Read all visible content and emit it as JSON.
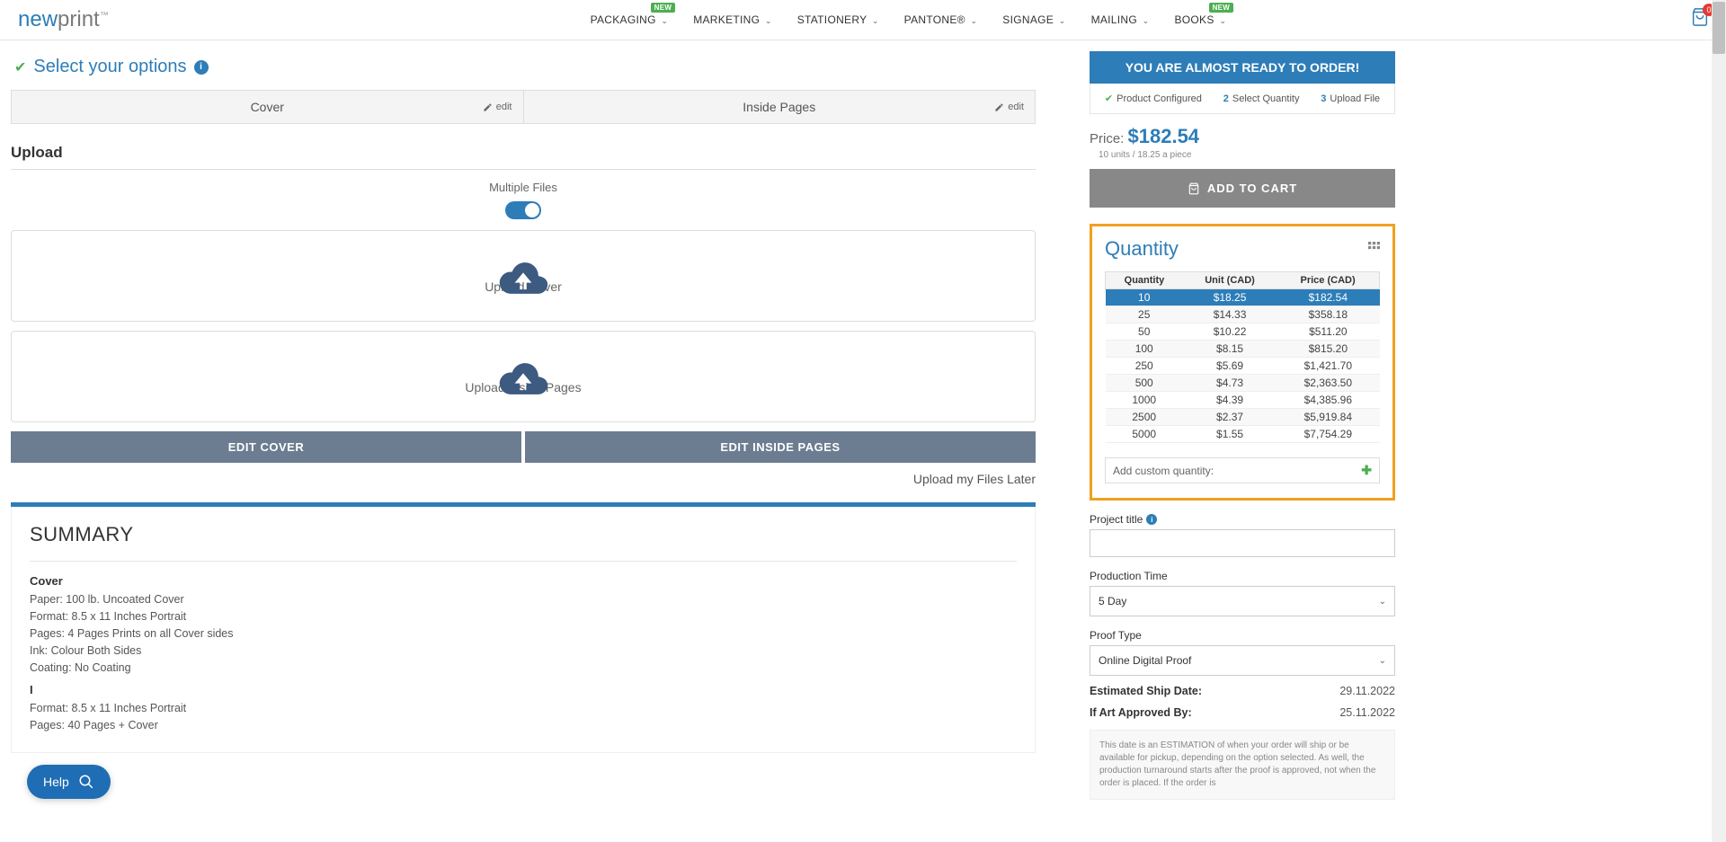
{
  "header": {
    "logo_left": "new",
    "logo_right": "print",
    "nav": [
      {
        "label": "PACKAGING",
        "badge": "NEW"
      },
      {
        "label": "MARKETING",
        "badge": null
      },
      {
        "label": "STATIONERY",
        "badge": null
      },
      {
        "label": "PANTONE®",
        "badge": null
      },
      {
        "label": "SIGNAGE",
        "badge": null
      },
      {
        "label": "MAILING",
        "badge": null
      },
      {
        "label": "BOOKS",
        "badge": "NEW"
      }
    ],
    "cart_count": "0"
  },
  "section_title": "Select your options",
  "tabs": {
    "cover": "Cover",
    "inside": "Inside Pages",
    "edit": "edit"
  },
  "upload": {
    "heading": "Upload",
    "multiple_files": "Multiple Files",
    "upload_cover": "Upload Cover",
    "upload_inside": "Upload Inside Pages",
    "edit_cover_btn": "EDIT COVER",
    "edit_inside_btn": "EDIT INSIDE PAGES",
    "later": "Upload my Files Later"
  },
  "summary": {
    "title": "SUMMARY",
    "cover_sub": "Cover",
    "cover_lines": [
      "Paper: 100 lb. Uncoated Cover",
      "Format: 8.5 x 11 Inches Portrait",
      "Pages: 4 Pages Prints on all Cover sides",
      "Ink: Colour Both Sides",
      "Coating: No Coating"
    ],
    "inside_sub": "I",
    "inside_lines": [
      "Format: 8.5 x 11 Inches Portrait",
      "Pages: 40 Pages + Cover"
    ]
  },
  "order": {
    "banner": "YOU ARE ALMOST READY TO ORDER!",
    "steps": {
      "s1": "Product Configured",
      "s2_num": "2",
      "s2": "Select Quantity",
      "s3_num": "3",
      "s3": "Upload File"
    },
    "price_label": "Price:",
    "price_value": "$182.54",
    "price_sub": "10 units / 18.25 a piece",
    "add_to_cart": "ADD TO CART"
  },
  "quantity": {
    "title": "Quantity",
    "headers": {
      "qty": "Quantity",
      "unit": "Unit (CAD)",
      "price": "Price (CAD)"
    },
    "rows": [
      {
        "qty": "10",
        "unit": "$18.25",
        "price": "$182.54",
        "selected": true
      },
      {
        "qty": "25",
        "unit": "$14.33",
        "price": "$358.18"
      },
      {
        "qty": "50",
        "unit": "$10.22",
        "price": "$511.20"
      },
      {
        "qty": "100",
        "unit": "$8.15",
        "price": "$815.20"
      },
      {
        "qty": "250",
        "unit": "$5.69",
        "price": "$1,421.70"
      },
      {
        "qty": "500",
        "unit": "$4.73",
        "price": "$2,363.50"
      },
      {
        "qty": "1000",
        "unit": "$4.39",
        "price": "$4,385.96"
      },
      {
        "qty": "2500",
        "unit": "$2.37",
        "price": "$5,919.84"
      },
      {
        "qty": "5000",
        "unit": "$1.55",
        "price": "$7,754.29"
      }
    ],
    "custom": "Add custom quantity:"
  },
  "project": {
    "title_label": "Project title",
    "prod_time_label": "Production Time",
    "prod_time_value": "5 Day",
    "proof_label": "Proof Type",
    "proof_value": "Online Digital Proof",
    "ship_label": "Estimated Ship Date:",
    "ship_value": "29.11.2022",
    "art_label": "If Art Approved By:",
    "art_value": "25.11.2022",
    "disclaimer": "This date is an ESTIMATION of when your order will ship or be available for pickup, depending on the option selected. As well, the production turnaround starts after the proof is approved, not when the order is placed. If the order is"
  },
  "help": {
    "label": "Help"
  },
  "colors": {
    "primary": "#2d7db8",
    "highlight_border": "#f0a020",
    "success": "#4caf50",
    "button_gray": "#6c7d91",
    "cart_gray": "#888"
  }
}
